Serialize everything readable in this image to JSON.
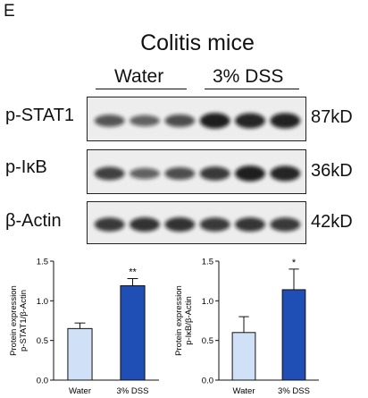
{
  "panel_letter": "E",
  "figure_title": "Colitis mice",
  "groups": [
    {
      "label": "Water"
    },
    {
      "label": "3% DSS"
    }
  ],
  "blots": [
    {
      "label": "p-STAT1",
      "size": "87kD",
      "intensity": [
        0.55,
        0.45,
        0.6,
        0.95,
        0.9,
        0.92
      ]
    },
    {
      "label": "p-IκB",
      "size": "36kD",
      "intensity": [
        0.7,
        0.45,
        0.6,
        0.75,
        0.95,
        0.9
      ]
    },
    {
      "label": "β-Actin",
      "size": "42kD",
      "intensity": [
        0.75,
        0.8,
        0.8,
        0.75,
        0.78,
        0.75
      ]
    }
  ],
  "colors": {
    "water_bar": "#cfe0f7",
    "dss_bar": "#1f4fb5",
    "band": "#111111"
  },
  "chart_data": [
    {
      "type": "bar",
      "categories": [
        "Water",
        "3% DSS"
      ],
      "values": [
        0.65,
        1.19
      ],
      "errors": [
        0.07,
        0.09
      ],
      "significance": [
        "",
        "**"
      ],
      "ylabel": "Protein expression\np-STAT1/β-Actin",
      "ylim": [
        0,
        1.5
      ],
      "yticks": [
        "0.0",
        "0.5",
        "1.0",
        "1.5"
      ],
      "grid": false
    },
    {
      "type": "bar",
      "categories": [
        "Water",
        "3% DSS"
      ],
      "values": [
        0.6,
        1.14
      ],
      "errors": [
        0.2,
        0.26
      ],
      "significance": [
        "",
        "*"
      ],
      "ylabel": "Protein expression\np-IκB/β-Actin",
      "ylim": [
        0,
        1.5
      ],
      "yticks": [
        "0.0",
        "0.5",
        "1.0",
        "1.5"
      ],
      "grid": false
    }
  ]
}
